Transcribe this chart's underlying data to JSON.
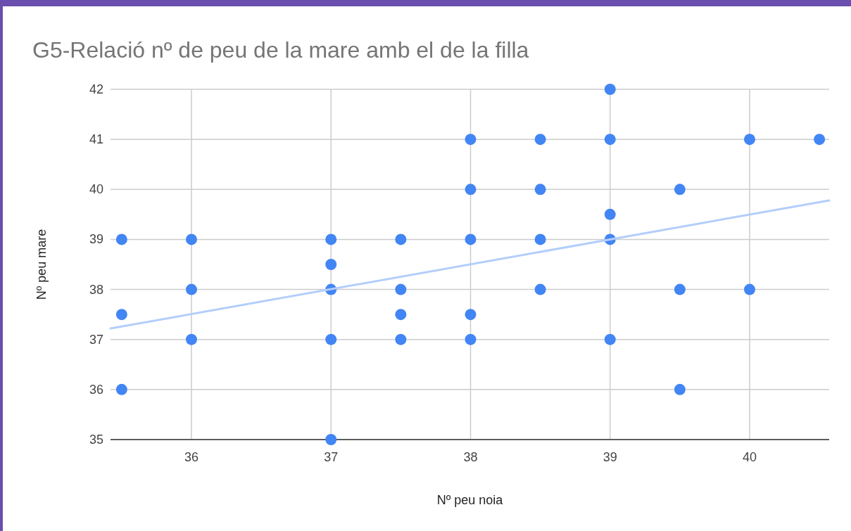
{
  "chart_data": {
    "type": "scatter",
    "title": "G5-Relació nº de peu de la mare amb el de la filla",
    "xlabel": "Nº peu noia",
    "ylabel": "Nº peu mare",
    "xlim": [
      35.42,
      40.57
    ],
    "xticks": [
      36,
      37,
      38,
      39,
      40
    ],
    "ylim": [
      35,
      42
    ],
    "yticks": [
      35,
      36,
      37,
      38,
      39,
      40,
      41,
      42
    ],
    "grid": true,
    "marker": "circle",
    "series": [
      {
        "color": "#4285f4",
        "x": [
          35.5,
          35.5,
          35.5,
          36,
          36,
          36,
          37,
          37,
          37,
          37,
          37,
          37.5,
          37.5,
          37.5,
          37.5,
          38,
          38,
          38,
          38,
          38,
          38.5,
          38.5,
          38.5,
          38.5,
          39,
          39,
          39,
          39,
          39,
          39.5,
          39.5,
          39.5,
          40,
          40,
          40.5
        ],
        "values": [
          39,
          37.5,
          36,
          39,
          38,
          37,
          39,
          38.5,
          38,
          37,
          35,
          39,
          38,
          37.5,
          37,
          41,
          40,
          39,
          37.5,
          37,
          41,
          40,
          39,
          38,
          42,
          41,
          39.5,
          39,
          37,
          40,
          38,
          36,
          41,
          38,
          41
        ]
      },
      {
        "type": "line",
        "marker": "none",
        "color": "#b3cefb",
        "x": [
          35.42,
          40.57
        ],
        "values": [
          37.22,
          39.78
        ]
      }
    ]
  }
}
